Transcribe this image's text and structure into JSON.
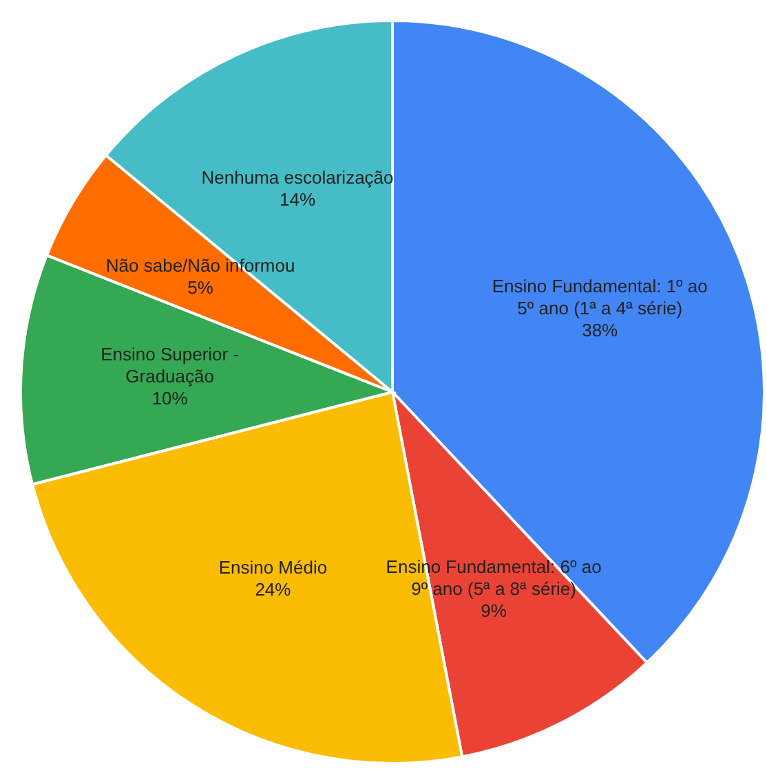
{
  "chart_data": {
    "type": "pie",
    "categories": [
      "Ensino Fundamental: 1º ao 5º ano (1ª a 4ª série)",
      "Ensino Fundamental: 6º ao 9º ano (5ª a 8ª série)",
      "Ensino Médio",
      "Ensino Superior - Graduação",
      "Não sabe/Não informou",
      "Nenhuma escolarização"
    ],
    "values": [
      38,
      9,
      24,
      10,
      5,
      14
    ],
    "value_labels": [
      "38%",
      "9%",
      "24%",
      "10%",
      "5%",
      "14%"
    ],
    "colors": [
      "#4285f4",
      "#ea4335",
      "#fbbc04",
      "#34a853",
      "#ff6d01",
      "#46bdc6"
    ]
  }
}
